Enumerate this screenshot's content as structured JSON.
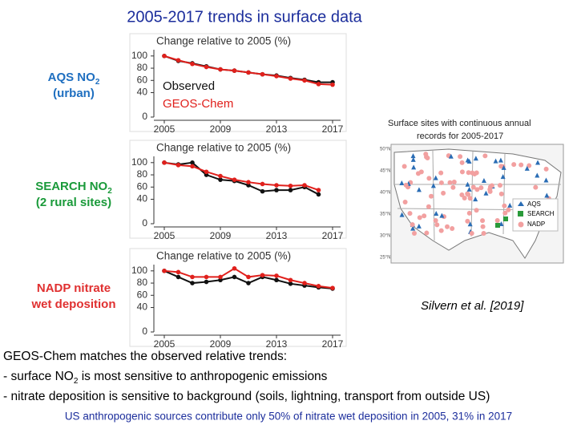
{
  "title": "2005-2017 trends in surface data",
  "chart_data": [
    {
      "type": "line",
      "title": "Change relative to 2005 (%)",
      "label": {
        "text": "AQS NO",
        "sub": "2",
        "line2": "(urban)",
        "color": "#1f6fc0"
      },
      "x": [
        2005,
        2006,
        2007,
        2008,
        2009,
        2010,
        2011,
        2012,
        2013,
        2014,
        2015,
        2016,
        2017
      ],
      "series": [
        {
          "name": "Observed",
          "color": "#111111",
          "values": [
            100,
            92,
            88,
            83,
            78,
            76,
            73,
            70,
            68,
            64,
            61,
            57,
            57
          ]
        },
        {
          "name": "GEOS-Chem",
          "color": "#e0201c",
          "values": [
            100,
            93,
            87,
            82,
            78,
            76,
            73,
            70,
            67,
            63,
            60,
            54,
            53
          ]
        }
      ],
      "xlim": [
        2005,
        2017
      ],
      "xticks": [
        2005,
        2009,
        2013,
        2017
      ],
      "ylim": [
        0,
        105
      ],
      "yticks": [
        0,
        40,
        60,
        80,
        100
      ]
    },
    {
      "type": "line",
      "title": "Change relative to 2005 (%)",
      "label": {
        "text": "SEARCH NO",
        "sub": "2",
        "line2": "(2 rural sites)",
        "color": "#1a9a3a"
      },
      "x": [
        2005,
        2006,
        2007,
        2008,
        2009,
        2010,
        2011,
        2012,
        2013,
        2014,
        2015,
        2016
      ],
      "series": [
        {
          "color": "#111111",
          "values": [
            100,
            97,
            100,
            80,
            72,
            70,
            63,
            53,
            55,
            55,
            60,
            48
          ]
        },
        {
          "color": "#e0201c",
          "values": [
            100,
            96,
            94,
            85,
            78,
            72,
            68,
            65,
            63,
            62,
            63,
            55
          ]
        }
      ],
      "xlim": [
        2005,
        2017
      ],
      "xticks": [
        2005,
        2009,
        2013,
        2017
      ],
      "ylim": [
        0,
        105
      ],
      "yticks": [
        0,
        40,
        60,
        80,
        100
      ]
    },
    {
      "type": "line",
      "title": "Change relative to 2005 (%)",
      "label": {
        "text": "NADP nitrate",
        "line2": "wet deposition",
        "color": "#e03030"
      },
      "x": [
        2005,
        2006,
        2007,
        2008,
        2009,
        2010,
        2011,
        2012,
        2013,
        2014,
        2015,
        2016,
        2017
      ],
      "series": [
        {
          "color": "#111111",
          "values": [
            100,
            90,
            80,
            82,
            85,
            90,
            80,
            90,
            85,
            79,
            76,
            73,
            71
          ]
        },
        {
          "color": "#e0201c",
          "values": [
            100,
            98,
            90,
            90,
            90,
            104,
            90,
            93,
            92,
            85,
            80,
            75,
            72
          ]
        }
      ],
      "xlim": [
        2005,
        2017
      ],
      "xticks": [
        2005,
        2009,
        2013,
        2017
      ],
      "ylim": [
        0,
        105
      ],
      "yticks": [
        0,
        40,
        60,
        80,
        100
      ]
    }
  ],
  "map": {
    "title": [
      "Surface sites with continuous annual",
      "records for 2005-2017"
    ],
    "legend": [
      "AQS",
      "SEARCH",
      "NADP"
    ],
    "lat_labels": [
      "50°N",
      "45°N",
      "40°N",
      "35°N",
      "30°N",
      "25°N"
    ]
  },
  "citation": "Silvern et al. [2019]",
  "footer": {
    "line1": "GEOS-Chem matches the observed relative trends:",
    "line2": {
      "a": "- surface NO",
      "sub": "2",
      "b": " is most sensitive to anthropogenic emissions"
    },
    "line3": "- nitrate deposition is sensitive to background (soils, lightning, transport from outside US)",
    "line4": "US anthropogenic sources contribute only 50% of nitrate wet deposition in 2005, 31% in 2017"
  }
}
